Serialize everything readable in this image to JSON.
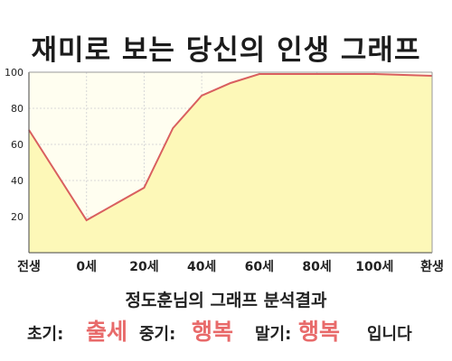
{
  "title": "재미로 보는 당신의 인생 그래프",
  "subtitle": "정도훈님의 그래프 분석결과",
  "result": {
    "early_label": "초기:",
    "early_value": "출세",
    "middle_label": "중기:",
    "middle_value": "행복",
    "late_label": "말기:",
    "late_value": "행복",
    "ending": "입니다"
  },
  "colors": {
    "line": "#d95f5f",
    "fill": "#fdf8b8",
    "plot_bg": "#fffef0",
    "highlight": "#e86a6a"
  },
  "chart_data": {
    "type": "area",
    "x_tick_labels": [
      "전생",
      "0세",
      "20세",
      "40세",
      "60세",
      "80세",
      "100세",
      "환생"
    ],
    "y_ticks": [
      20,
      40,
      60,
      80,
      100
    ],
    "ylim": [
      0,
      100
    ],
    "xlim": [
      -20,
      120
    ],
    "grid": true,
    "points": [
      {
        "x": -20,
        "y": 68
      },
      {
        "x": 0,
        "y": 18
      },
      {
        "x": 20,
        "y": 36
      },
      {
        "x": 30,
        "y": 69
      },
      {
        "x": 40,
        "y": 87
      },
      {
        "x": 50,
        "y": 94
      },
      {
        "x": 60,
        "y": 99
      },
      {
        "x": 100,
        "y": 99
      },
      {
        "x": 120,
        "y": 98
      }
    ]
  }
}
